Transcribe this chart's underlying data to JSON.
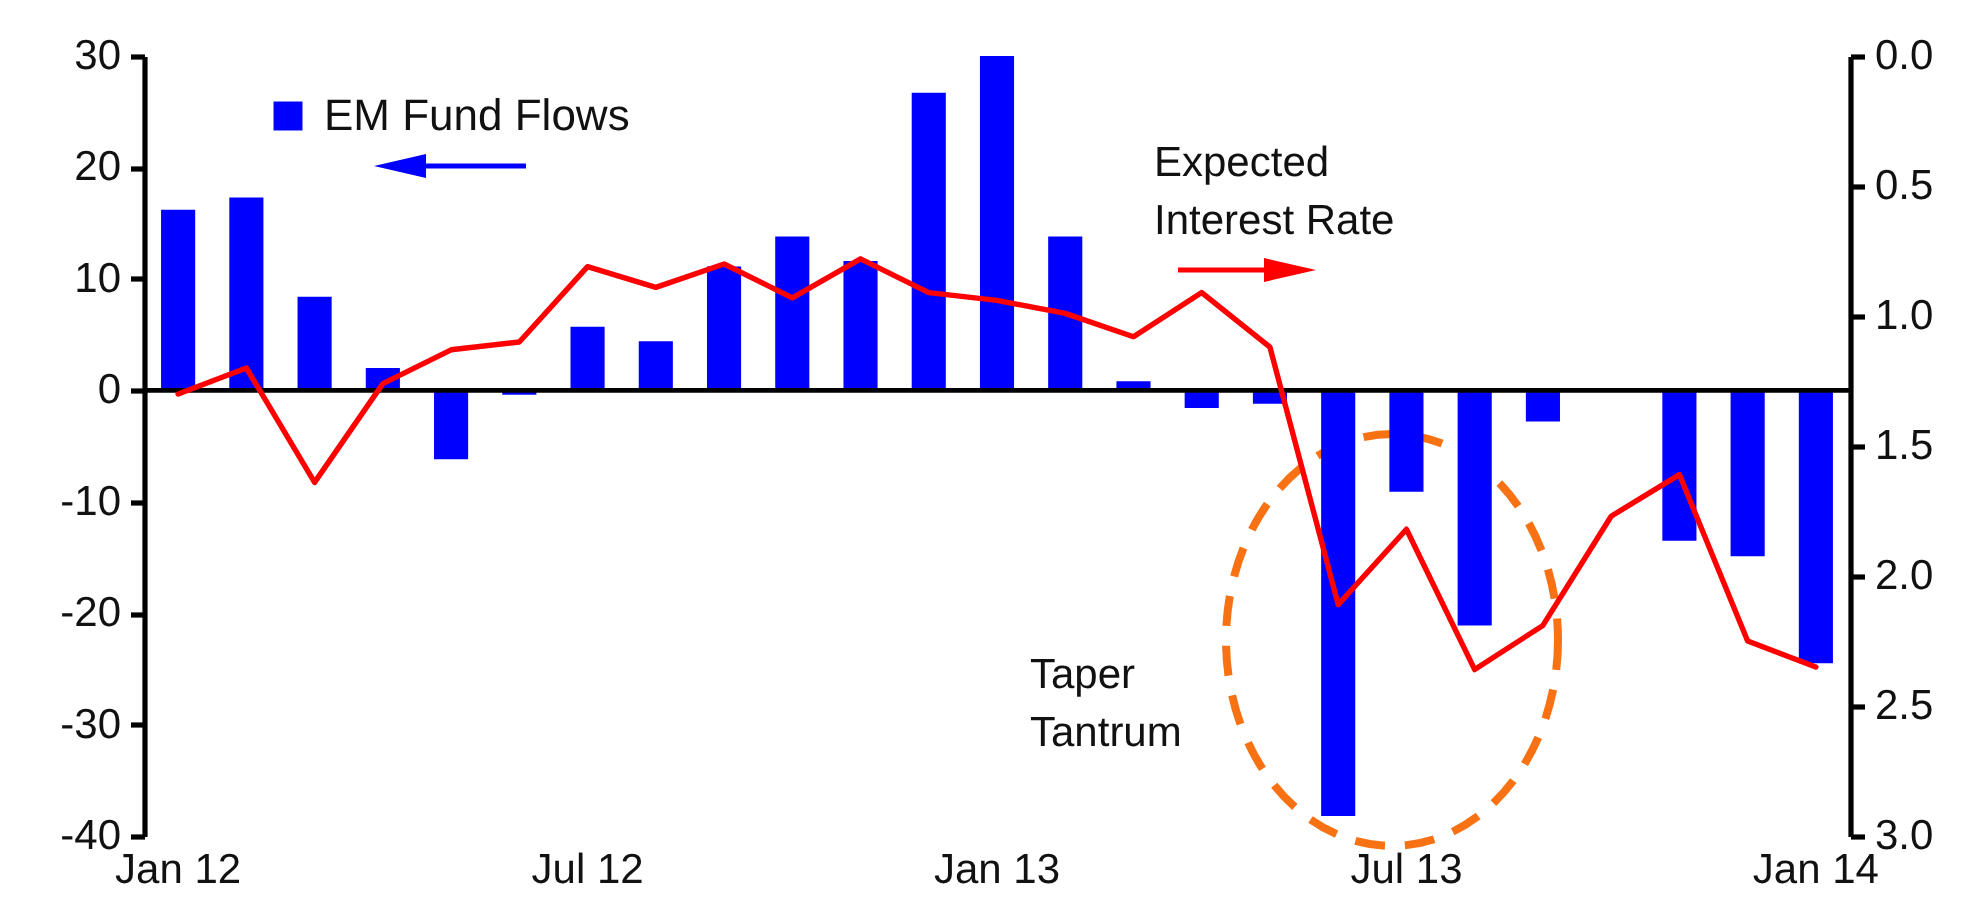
{
  "chart_data": {
    "type": "bar",
    "categories": [
      "Jan 12",
      null,
      null,
      null,
      null,
      null,
      "Jul 12",
      null,
      null,
      null,
      null,
      null,
      "Jan 13",
      null,
      null,
      null,
      null,
      null,
      "Jul 13",
      null,
      null,
      null,
      null,
      null,
      "Jan 14"
    ],
    "series": [
      {
        "name": "EM Fund Flows",
        "color": "#0000ff",
        "values": [
          16.2,
          17.3,
          8.4,
          2.0,
          -6.2,
          -0.4,
          5.7,
          4.4,
          11.1,
          13.8,
          11.6,
          26.7,
          30.0,
          13.8,
          0.8,
          -1.6,
          -1.2,
          -38.2,
          -9.1,
          -21.1,
          -2.8,
          null,
          -13.5,
          -14.9,
          -24.5
        ]
      },
      {
        "name": "Expected Interest Rate",
        "type": "line",
        "axis": "y2",
        "color": "#ff0000",
        "values": [
          1.3,
          1.2,
          1.64,
          1.26,
          1.13,
          1.1,
          0.81,
          0.89,
          0.8,
          0.93,
          0.78,
          0.91,
          0.94,
          0.99,
          1.08,
          0.91,
          1.12,
          2.11,
          1.82,
          2.36,
          2.19,
          1.77,
          1.61,
          2.25,
          2.35
        ]
      }
    ],
    "ylim": [
      -40,
      30
    ],
    "yticks": [
      30,
      20,
      10,
      0,
      -10,
      -20,
      -30,
      -40
    ],
    "y2lim": [
      3,
      0
    ],
    "y2ticks": [
      {
        "value": 0,
        "label": "0.0"
      },
      0.5,
      {
        "value": 1,
        "label": "1.0"
      },
      1.5,
      {
        "value": 2,
        "label": "2.0"
      },
      2.5,
      {
        "value": 3,
        "label": "3.0"
      }
    ],
    "ref_lines": [
      {
        "axis": "y",
        "value": 0,
        "color": "#000000"
      }
    ],
    "annotations": [
      "Taper Tantrum"
    ],
    "legend": "top left"
  }
}
